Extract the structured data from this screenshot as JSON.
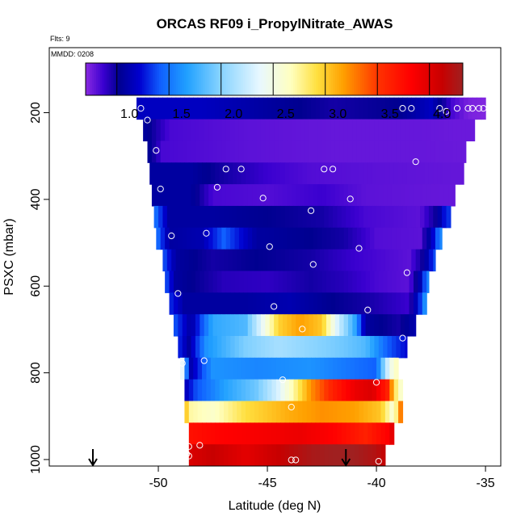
{
  "chart_data": {
    "type": "heatmap",
    "title": "ORCAS RF09 i_PropylNitrate_AWAS",
    "annotations": {
      "flights": "Flts: 9",
      "date": "MMDD: 0208"
    },
    "xlabel": "Latitude (deg N)",
    "ylabel": "PSXC (mbar)",
    "xlim": [
      -55,
      -34.3
    ],
    "ylim": [
      1015,
      50
    ],
    "x_ticks": [
      -50,
      -45,
      -40,
      -35
    ],
    "x_tick_labels": [
      "-50",
      "-45",
      "-40",
      "-35"
    ],
    "y_ticks": [
      200,
      400,
      600,
      800,
      1000
    ],
    "y_tick_labels": [
      "200",
      "400",
      "600",
      "800",
      "1000"
    ],
    "colorbar": {
      "min": 0.58,
      "max": 4.2,
      "ticks": [
        1.0,
        1.5,
        2.0,
        2.5,
        3.0,
        3.5,
        4.0
      ],
      "tick_labels": [
        "1.0",
        "1.5",
        "2.0",
        "2.5",
        "3.0",
        "3.5",
        "4.0"
      ],
      "boundaries": [
        0.88,
        1.38,
        1.88,
        2.38,
        2.88,
        3.38,
        3.88
      ],
      "stops": [
        {
          "v": 0.58,
          "c": "#8b2be2"
        },
        {
          "v": 0.75,
          "c": "#3a00d0"
        },
        {
          "v": 0.9,
          "c": "#000090"
        },
        {
          "v": 1.1,
          "c": "#0000d0"
        },
        {
          "v": 1.3,
          "c": "#1060ff"
        },
        {
          "v": 1.55,
          "c": "#20a0ff"
        },
        {
          "v": 1.85,
          "c": "#80d0ff"
        },
        {
          "v": 2.25,
          "c": "#e8f8ff"
        },
        {
          "v": 2.55,
          "c": "#ffffc0"
        },
        {
          "v": 2.8,
          "c": "#ffe040"
        },
        {
          "v": 3.05,
          "c": "#ffa000"
        },
        {
          "v": 3.4,
          "c": "#ff3000"
        },
        {
          "v": 3.7,
          "c": "#ff0000"
        },
        {
          "v": 4.0,
          "c": "#c80000"
        },
        {
          "v": 4.2,
          "c": "#a02020"
        }
      ]
    },
    "row_height_mbar": 50,
    "rows": [
      {
        "p": 190,
        "lat_min": -51.0,
        "lat_max": -35.0,
        "values": [
          [
            -51.0,
            1.05
          ],
          [
            -48.0,
            1.05
          ],
          [
            -45.0,
            0.95
          ],
          [
            -42.0,
            0.85
          ],
          [
            -39.0,
            0.9
          ],
          [
            -37.5,
            1.05
          ],
          [
            -36.5,
            0.72
          ],
          [
            -35.8,
            0.62
          ],
          [
            -35.0,
            0.6
          ]
        ]
      },
      {
        "p": 240,
        "lat_min": -50.7,
        "lat_max": -35.5,
        "values": [
          [
            -50.7,
            0.95
          ],
          [
            -49.5,
            0.72
          ],
          [
            -46.0,
            0.68
          ],
          [
            -42.0,
            0.66
          ],
          [
            -38.0,
            0.66
          ],
          [
            -36.5,
            0.65
          ],
          [
            -35.5,
            0.65
          ]
        ]
      },
      {
        "p": 290,
        "lat_min": -50.5,
        "lat_max": -35.9,
        "values": [
          [
            -50.5,
            0.95
          ],
          [
            -49.8,
            0.72
          ],
          [
            -46.0,
            0.68
          ],
          [
            -42.0,
            0.66
          ],
          [
            -38.0,
            0.66
          ],
          [
            -35.9,
            0.65
          ]
        ]
      },
      {
        "p": 340,
        "lat_min": -50.4,
        "lat_max": -36.0,
        "values": [
          [
            -50.4,
            0.95
          ],
          [
            -48.5,
            0.95
          ],
          [
            -47.0,
            0.85
          ],
          [
            -45.0,
            0.75
          ],
          [
            -43.0,
            0.7
          ],
          [
            -40.0,
            0.68
          ],
          [
            -36.0,
            0.66
          ]
        ]
      },
      {
        "p": 390,
        "lat_min": -50.3,
        "lat_max": -36.4,
        "values": [
          [
            -50.3,
            0.95
          ],
          [
            -48.5,
            0.95
          ],
          [
            -47.5,
            0.72
          ],
          [
            -45.0,
            0.7
          ],
          [
            -42.5,
            0.75
          ],
          [
            -40.5,
            0.68
          ],
          [
            -37.0,
            0.66
          ],
          [
            -36.4,
            0.66
          ]
        ]
      },
      {
        "p": 440,
        "lat_min": -50.2,
        "lat_max": -36.6,
        "values": [
          [
            -50.2,
            1.4
          ],
          [
            -49.5,
            0.95
          ],
          [
            -47.5,
            0.95
          ],
          [
            -45.0,
            0.9
          ],
          [
            -42.5,
            0.85
          ],
          [
            -40.5,
            0.72
          ],
          [
            -38.0,
            0.68
          ],
          [
            -37.2,
            0.9
          ],
          [
            -36.8,
            1.2
          ]
        ]
      },
      {
        "p": 490,
        "lat_min": -50.1,
        "lat_max": -37.0,
        "values": [
          [
            -50.1,
            1.4
          ],
          [
            -49.5,
            0.95
          ],
          [
            -48.0,
            1.0
          ],
          [
            -47.0,
            1.3
          ],
          [
            -45.5,
            0.95
          ],
          [
            -43.0,
            0.9
          ],
          [
            -41.5,
            0.85
          ],
          [
            -40.0,
            0.7
          ],
          [
            -38.0,
            0.68
          ],
          [
            -37.4,
            1.1
          ],
          [
            -37.0,
            1.5
          ]
        ]
      },
      {
        "p": 540,
        "lat_min": -49.8,
        "lat_max": -37.3,
        "values": [
          [
            -49.8,
            1.3
          ],
          [
            -49.2,
            0.95
          ],
          [
            -47.5,
            0.85
          ],
          [
            -45.5,
            0.9
          ],
          [
            -43.0,
            0.85
          ],
          [
            -41.0,
            0.75
          ],
          [
            -38.5,
            0.68
          ],
          [
            -37.8,
            0.9
          ],
          [
            -37.3,
            1.3
          ]
        ]
      },
      {
        "p": 590,
        "lat_min": -49.7,
        "lat_max": -37.6,
        "values": [
          [
            -49.7,
            1.3
          ],
          [
            -49.2,
            0.95
          ],
          [
            -47.0,
            0.8
          ],
          [
            -45.0,
            0.78
          ],
          [
            -43.0,
            0.85
          ],
          [
            -41.5,
            0.8
          ],
          [
            -40.0,
            0.72
          ],
          [
            -38.5,
            0.68
          ],
          [
            -38.0,
            1.0
          ],
          [
            -37.6,
            1.5
          ]
        ]
      },
      {
        "p": 640,
        "lat_min": -49.5,
        "lat_max": -37.7,
        "values": [
          [
            -49.5,
            1.2
          ],
          [
            -48.8,
            0.95
          ],
          [
            -46.0,
            0.95
          ],
          [
            -44.0,
            1.0
          ],
          [
            -42.0,
            0.9
          ],
          [
            -40.5,
            0.85
          ],
          [
            -38.5,
            0.75
          ],
          [
            -38.0,
            1.2
          ],
          [
            -37.7,
            1.6
          ]
        ]
      },
      {
        "p": 690,
        "lat_min": -49.3,
        "lat_max": -38.2,
        "values": [
          [
            -49.3,
            1.3
          ],
          [
            -48.5,
            0.95
          ],
          [
            -47.5,
            1.6
          ],
          [
            -46.0,
            1.7
          ],
          [
            -45.2,
            2.3
          ],
          [
            -44.5,
            2.85
          ],
          [
            -43.5,
            3.05
          ],
          [
            -42.5,
            2.9
          ],
          [
            -41.8,
            2.2
          ],
          [
            -41.0,
            1.6
          ],
          [
            -40.5,
            0.95
          ],
          [
            -39.0,
            0.85
          ],
          [
            -38.2,
            1.0
          ]
        ]
      },
      {
        "p": 740,
        "lat_min": -49.1,
        "lat_max": -38.6,
        "values": [
          [
            -49.1,
            1.2
          ],
          [
            -48.6,
            0.95
          ],
          [
            -47.8,
            1.5
          ],
          [
            -46.0,
            1.85
          ],
          [
            -44.5,
            2.0
          ],
          [
            -43.0,
            1.9
          ],
          [
            -41.5,
            1.8
          ],
          [
            -40.5,
            1.7
          ],
          [
            -39.5,
            1.3
          ],
          [
            -38.6,
            1.1
          ]
        ]
      },
      {
        "p": 790,
        "lat_min": -49.0,
        "lat_max": -39.0,
        "values": [
          [
            -49.0,
            2.7
          ],
          [
            -48.6,
            0.95
          ],
          [
            -47.5,
            1.5
          ],
          [
            -45.5,
            1.45
          ],
          [
            -43.0,
            1.5
          ],
          [
            -41.5,
            1.4
          ],
          [
            -40.0,
            1.3
          ],
          [
            -39.4,
            2.3
          ],
          [
            -39.0,
            2.6
          ]
        ]
      },
      {
        "p": 840,
        "lat_min": -48.8,
        "lat_max": -38.8,
        "values": [
          [
            -48.8,
            1.0
          ],
          [
            -48.3,
            1.25
          ],
          [
            -47.0,
            1.55
          ],
          [
            -45.5,
            1.8
          ],
          [
            -44.5,
            2.2
          ],
          [
            -43.8,
            2.6
          ],
          [
            -43.0,
            3.1
          ],
          [
            -42.0,
            3.5
          ],
          [
            -41.0,
            3.8
          ],
          [
            -40.2,
            3.9
          ],
          [
            -39.5,
            3.5
          ],
          [
            -39.0,
            2.5
          ],
          [
            -38.8,
            2.5
          ]
        ]
      },
      {
        "p": 890,
        "lat_min": -48.8,
        "lat_max": -38.8,
        "values": [
          [
            -48.8,
            3.0
          ],
          [
            -48.5,
            2.6
          ],
          [
            -47.5,
            2.5
          ],
          [
            -46.0,
            2.8
          ],
          [
            -44.0,
            3.0
          ],
          [
            -42.5,
            3.1
          ],
          [
            -41.0,
            3.05
          ],
          [
            -39.8,
            2.9
          ],
          [
            -39.2,
            2.4
          ],
          [
            -38.8,
            3.4
          ]
        ]
      },
      {
        "p": 940,
        "lat_min": -48.6,
        "lat_max": -39.2,
        "values": [
          [
            -48.6,
            3.6
          ],
          [
            -47.0,
            3.7
          ],
          [
            -45.0,
            3.75
          ],
          [
            -43.5,
            3.8
          ],
          [
            -42.0,
            3.7
          ],
          [
            -40.5,
            3.5
          ],
          [
            -39.5,
            3.7
          ],
          [
            -39.2,
            3.9
          ]
        ]
      },
      {
        "p": 990,
        "lat_min": -48.6,
        "lat_max": -39.6,
        "values": [
          [
            -48.6,
            3.9
          ],
          [
            -47.5,
            4.0
          ],
          [
            -46.0,
            3.85
          ],
          [
            -44.5,
            4.0
          ],
          [
            -43.0,
            4.15
          ],
          [
            -42.0,
            4.2
          ],
          [
            -41.0,
            4.2
          ],
          [
            -40.0,
            4.1
          ],
          [
            -39.6,
            4.0
          ]
        ]
      }
    ],
    "sample_points": [
      [
        -50.8,
        190
      ],
      [
        -38.8,
        190
      ],
      [
        -38.4,
        190
      ],
      [
        -37.1,
        190
      ],
      [
        -36.8,
        197
      ],
      [
        -36.3,
        190
      ],
      [
        -35.8,
        190
      ],
      [
        -35.6,
        190
      ],
      [
        -35.3,
        190
      ],
      [
        -35.1,
        190
      ],
      [
        -50.5,
        217
      ],
      [
        -50.1,
        287
      ],
      [
        -46.9,
        330
      ],
      [
        -46.2,
        330
      ],
      [
        -42.4,
        330
      ],
      [
        -42.0,
        330
      ],
      [
        -38.2,
        313
      ],
      [
        -47.3,
        372
      ],
      [
        -49.9,
        376
      ],
      [
        -45.2,
        397
      ],
      [
        -41.2,
        399
      ],
      [
        -43.0,
        426
      ],
      [
        -49.4,
        484
      ],
      [
        -47.8,
        478
      ],
      [
        -44.9,
        509
      ],
      [
        -40.8,
        513
      ],
      [
        -42.9,
        550
      ],
      [
        -38.6,
        569
      ],
      [
        -49.1,
        617
      ],
      [
        -40.4,
        655
      ],
      [
        -44.7,
        647
      ],
      [
        -43.4,
        699
      ],
      [
        -38.8,
        720
      ],
      [
        -48.9,
        778
      ],
      [
        -47.9,
        772
      ],
      [
        -44.3,
        816
      ],
      [
        -40.0,
        822
      ],
      [
        -43.9,
        879
      ],
      [
        -48.6,
        970
      ],
      [
        -48.7,
        987
      ],
      [
        -48.6,
        992
      ],
      [
        -48.1,
        967
      ],
      [
        -43.9,
        1001
      ],
      [
        -43.7,
        1001
      ],
      [
        -39.9,
        1004
      ]
    ],
    "arrows": [
      -53.0,
      -41.4
    ]
  }
}
